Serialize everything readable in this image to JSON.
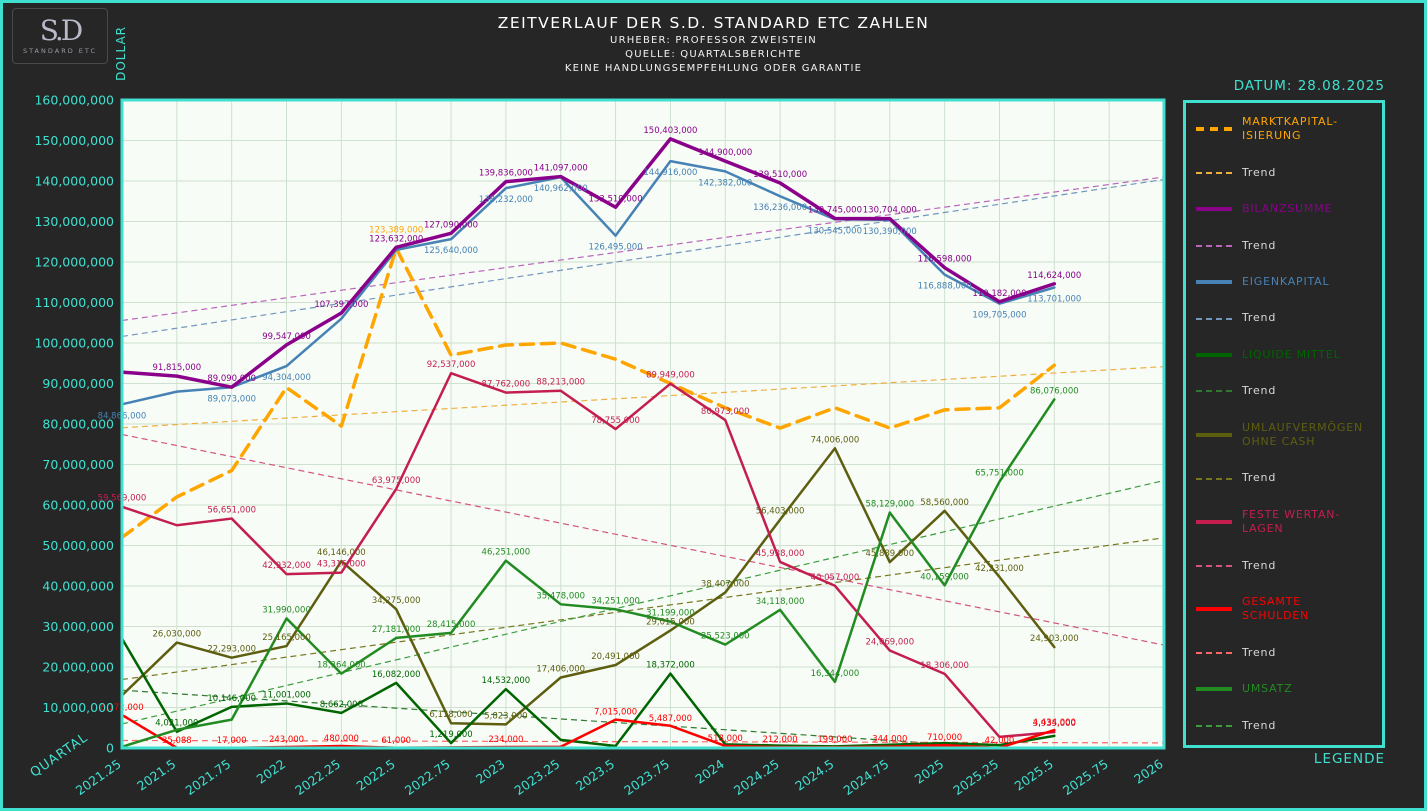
{
  "page": {
    "title": "ZEITVERLAUF DER S.D. STANDARD ETC ZAHLEN",
    "subtitles": [
      "URHEBER: PROFESSOR ZWEISTEIN",
      "QUELLE: QUARTALSBERICHTE",
      "KEINE HANDLUNGSEMPFEHLUNG ODER GARANTIE"
    ],
    "date_label": "DATUM: 28.08.2025",
    "legend_caption": "LEGENDE",
    "x_axis_label": "QUARTAL",
    "y_axis_label": "DOLLAR",
    "logo": {
      "monogram": "S.D",
      "subtext": "STANDARD ETC"
    }
  },
  "colors": {
    "background": "#262626",
    "accent": "#40E0D0",
    "plot_bg": "#F7FCF7",
    "grid": "#CFE0CF",
    "title_text": "#FFFFFF",
    "trend_text": "#D8D8D8"
  },
  "chart_data": {
    "type": "line",
    "title": "ZEITVERLAUF DER S.D. STANDARD ETC ZAHLEN",
    "xlabel": "QUARTAL",
    "ylabel": "DOLLAR",
    "grid": true,
    "legend_position": "right",
    "trend_label": "Trend",
    "xlim": [
      2021.25,
      2026
    ],
    "ylim": [
      0,
      160000000
    ],
    "y_tick_step": 10000000,
    "x_ticks": [
      2021.25,
      2021.5,
      2021.75,
      2022,
      2022.25,
      2022.5,
      2022.75,
      2023,
      2023.25,
      2023.5,
      2023.75,
      2024,
      2024.25,
      2024.5,
      2024.75,
      2025,
      2025.25,
      2025.5,
      2025.75,
      2026
    ],
    "x_tick_labels": [
      "2021.25",
      "2021.5",
      "2021.75",
      "2022",
      "2022.25",
      "2022.5",
      "2022.75",
      "2023",
      "2023.25",
      "2023.5",
      "2023.75",
      "2024",
      "2024.25",
      "2024.5",
      "2024.75",
      "2025",
      "2025.25",
      "2025.5",
      "2025.75",
      "2026"
    ],
    "x": [
      2021.25,
      2021.5,
      2021.75,
      2022,
      2022.25,
      2022.5,
      2022.75,
      2023,
      2023.25,
      2023.5,
      2023.75,
      2024,
      2024.25,
      2024.5,
      2024.75,
      2025,
      2025.25,
      2025.5
    ],
    "series": [
      {
        "id": "marktkapitalisierung",
        "name": "MARKTKAPITALISIERUNG",
        "legend_label": "MARKTKAPITAL-ISIERUNG",
        "color": "#FFA500",
        "trend_color": "#EFAF3F",
        "width": 3.5,
        "dash": "13,8",
        "z": 1,
        "label_dy": -16,
        "trend": true,
        "values": [
          52000000,
          62000000,
          68500000,
          89000000,
          79500000,
          123389000,
          97000000,
          99500000,
          100000000,
          96000000,
          90000000,
          84000000,
          79000000,
          84000000,
          79000000,
          83500000,
          84000000,
          94500000
        ],
        "labeled": [
          0,
          0,
          0,
          0,
          0,
          1,
          0,
          0,
          0,
          0,
          0,
          0,
          0,
          0,
          0,
          0,
          0,
          0
        ]
      },
      {
        "id": "bilanzsumme",
        "name": "BILANZSUMME",
        "color": "#8B008B",
        "trend_color": "#BB66BB",
        "width": 3.5,
        "z": 8,
        "label_dy": -6,
        "trend": true,
        "values": [
          92800000,
          91815000,
          89090000,
          99547000,
          107397000,
          123632000,
          127090000,
          139836000,
          141097000,
          133510000,
          150403000,
          144900000,
          139510000,
          130745000,
          130704000,
          118598000,
          110182000,
          114624000
        ],
        "labeled": [
          0,
          1,
          1,
          1,
          1,
          1,
          1,
          1,
          1,
          1,
          1,
          1,
          1,
          1,
          1,
          1,
          1,
          1
        ]
      },
      {
        "id": "eigenkapital",
        "name": "EIGENKAPITAL",
        "color": "#4682B4",
        "trend_color": "#7296BC",
        "width": 2.5,
        "z": 7,
        "label_dy": 14,
        "trend": true,
        "values": [
          84866000,
          88000000,
          89073000,
          94304000,
          106000000,
          123000000,
          125640000,
          138232000,
          140962000,
          126495000,
          144916000,
          142382000,
          136236000,
          130545000,
          130390000,
          116888000,
          109705000,
          113701000
        ],
        "labeled": [
          1,
          0,
          1,
          1,
          0,
          0,
          1,
          1,
          1,
          1,
          1,
          1,
          1,
          1,
          1,
          1,
          1,
          1
        ]
      },
      {
        "id": "liquide-mittel",
        "name": "LIQUIDE MITTEL",
        "color": "#006400",
        "trend_color": "#2F7A2F",
        "width": 2.5,
        "z": 3,
        "label_dy": -6,
        "trend": true,
        "values": [
          27000000,
          4021000,
          10146000,
          11001000,
          8662000,
          16082000,
          1219000,
          14532000,
          2000000,
          500000,
          18372000,
          900000,
          600000,
          400000,
          800000,
          1200000,
          700000,
          3000000
        ],
        "labeled": [
          0,
          1,
          1,
          1,
          1,
          1,
          1,
          1,
          0,
          0,
          1,
          0,
          0,
          0,
          0,
          0,
          0,
          0
        ]
      },
      {
        "id": "umlaufvermoegen-ohne-cash",
        "name": "UMLAUFVERMÖGEN OHNE CASH",
        "color": "#5E5E10",
        "trend_color": "#77771F",
        "width": 2.5,
        "z": 2,
        "label_dy": -6,
        "trend": true,
        "values": [
          13000000,
          26030000,
          22293000,
          25165000,
          46146000,
          34275000,
          6118000,
          5823000,
          17406000,
          20491000,
          29015000,
          38407000,
          56403000,
          74006000,
          45889000,
          58560000,
          42231000,
          24903000
        ],
        "labeled": [
          0,
          1,
          1,
          1,
          1,
          1,
          1,
          1,
          1,
          1,
          1,
          1,
          1,
          1,
          1,
          1,
          1,
          1
        ]
      },
      {
        "id": "feste-wertanlagen",
        "name": "FESTE WERTANLAGEN",
        "legend_label": "FESTE WERTAN-LAGEN",
        "color": "#C41E4F",
        "trend_color": "#D4547E",
        "width": 2.5,
        "z": 5,
        "label_dy": -6,
        "trend": true,
        "values": [
          59569000,
          55000000,
          56651000,
          42932000,
          43316000,
          63975000,
          92537000,
          87762000,
          88213000,
          78755000,
          89949000,
          80973000,
          45938000,
          40057000,
          24069000,
          18306000,
          2740000,
          3935000
        ],
        "labeled": [
          1,
          0,
          1,
          1,
          1,
          1,
          1,
          1,
          1,
          1,
          1,
          1,
          1,
          1,
          1,
          1,
          0,
          1
        ]
      },
      {
        "id": "gesamte-schulden",
        "name": "GESAMTE SCHULDEN",
        "color": "#FF0000",
        "trend_color": "#FF6666",
        "width": 2.5,
        "z": 6,
        "label_dy": -5,
        "trend": true,
        "values": [
          8172000,
          35088,
          17000,
          243000,
          480000,
          61000,
          150000,
          234000,
          300000,
          7015000,
          5487000,
          518000,
          212000,
          199000,
          344000,
          710000,
          42000,
          4434000
        ],
        "labeled": [
          1,
          1,
          1,
          1,
          1,
          1,
          0,
          1,
          0,
          1,
          1,
          1,
          1,
          1,
          1,
          1,
          1,
          1
        ]
      },
      {
        "id": "umsatz",
        "name": "UMSATZ",
        "color": "#228B22",
        "trend_color": "#3C9B3C",
        "width": 2.5,
        "z": 9,
        "label_dy": -6,
        "trend": true,
        "values": [
          300000,
          4500000,
          7000000,
          31990000,
          18364000,
          27181000,
          28415000,
          46251000,
          35478000,
          34251000,
          31199000,
          25523000,
          34118000,
          16344000,
          58129000,
          40159000,
          65751000,
          86076000
        ],
        "labeled": [
          0,
          0,
          0,
          1,
          1,
          1,
          1,
          1,
          1,
          1,
          1,
          1,
          1,
          1,
          1,
          1,
          1,
          1
        ]
      }
    ]
  }
}
